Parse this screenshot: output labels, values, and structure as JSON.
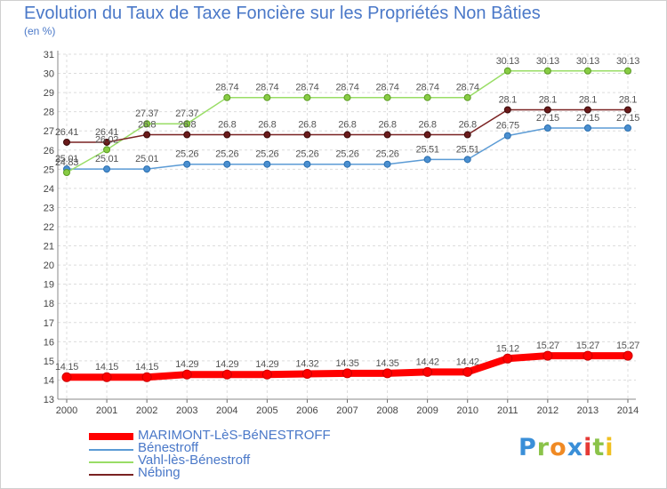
{
  "title": "Evolution du Taux de Taxe Foncière sur les Propriétés Non Bâties",
  "unit_label": "(en %)",
  "logo": {
    "letters": [
      "P",
      "r",
      "o",
      "x",
      "i",
      "t",
      "i"
    ],
    "colors": [
      "#3a8fd8",
      "#8bc34a",
      "#f08a24",
      "#3a8fd8",
      "#e53935",
      "#8bc34a",
      "#f0c020"
    ]
  },
  "chart_data": {
    "type": "line",
    "title": "Evolution du Taux de Taxe Foncière sur les Propriétés Non Bâties",
    "ylabel": "(en %)",
    "xlabel": "",
    "x": [
      "2000",
      "2001",
      "2002",
      "2003",
      "2004",
      "2005",
      "2006",
      "2007",
      "2008",
      "2009",
      "2010",
      "2011",
      "2012",
      "2013",
      "2014"
    ],
    "ylim": [
      13,
      31
    ],
    "yticks": [
      "13",
      "14",
      "15",
      "16",
      "17",
      "18",
      "19",
      "20",
      "21",
      "22",
      "23",
      "24",
      "25",
      "26",
      "27",
      "28",
      "29",
      "30",
      "31"
    ],
    "grid": true,
    "legend_position": "bottom-left",
    "series": [
      {
        "name": "MARIMONT-LèS-BéNESTROFF",
        "color": "#ff0000",
        "values": [
          14.15,
          14.15,
          14.15,
          14.29,
          14.29,
          14.29,
          14.32,
          14.35,
          14.35,
          14.42,
          14.42,
          15.12,
          15.27,
          15.27,
          15.27
        ],
        "labels": [
          "14.15",
          "14.15",
          "14.15",
          "14.29",
          "14.29",
          "14.29",
          "14.32",
          "14.35",
          "14.35",
          "14.42",
          "14.42",
          "15.12",
          "15.27",
          "15.27",
          "15.27"
        ]
      },
      {
        "name": "Bénestroff",
        "color": "#5b9bd5",
        "values": [
          25.01,
          25.01,
          25.01,
          25.26,
          25.26,
          25.26,
          25.26,
          25.26,
          25.26,
          25.51,
          25.51,
          26.75,
          27.15,
          27.15,
          27.15
        ],
        "labels": [
          "25.01",
          "25.01",
          "25.01",
          "25.26",
          "25.26",
          "25.26",
          "25.26",
          "25.26",
          "25.26",
          "25.51",
          "25.51",
          "26.75",
          "27.15",
          "27.15",
          "27.15"
        ]
      },
      {
        "name": "Vahl-lès-Bénestroff",
        "color": "#99dd66",
        "values": [
          24.83,
          26.02,
          27.37,
          27.37,
          28.74,
          28.74,
          28.74,
          28.74,
          28.74,
          28.74,
          28.74,
          30.13,
          30.13,
          30.13,
          30.13
        ],
        "labels": [
          "24.83",
          "26.02",
          "27.37",
          "27.37",
          "28.74",
          "28.74",
          "28.74",
          "28.74",
          "28.74",
          "28.74",
          "28.74",
          "30.13",
          "30.13",
          "30.13",
          "30.13"
        ]
      },
      {
        "name": "Nébing",
        "color": "#7a2222",
        "values": [
          26.41,
          26.41,
          26.8,
          26.8,
          26.8,
          26.8,
          26.8,
          26.8,
          26.8,
          26.8,
          26.8,
          28.1,
          28.1,
          28.1,
          28.1
        ],
        "labels": [
          "26.41",
          "26.41",
          "26.8",
          "26.8",
          "26.8",
          "26.8",
          "26.8",
          "26.8",
          "26.8",
          "26.8",
          "26.8",
          "28.1",
          "28.1",
          "28.1",
          "28.1"
        ]
      }
    ]
  }
}
